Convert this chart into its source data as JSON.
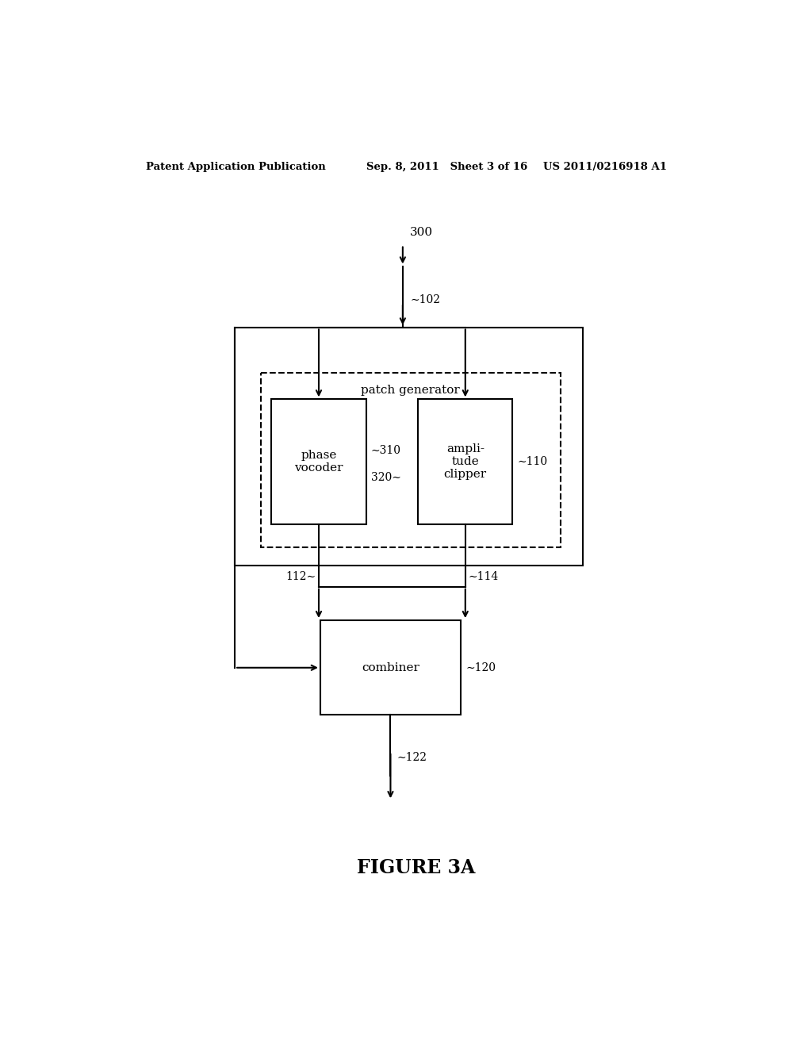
{
  "bg_color": "#ffffff",
  "header_left": "Patent Application Publication",
  "header_mid": "Sep. 8, 2011   Sheet 3 of 16",
  "header_right": "US 2011/0216918 A1",
  "figure_label": "FIGURE 3A",
  "label_300": "300",
  "label_102": "102",
  "label_110": "110",
  "label_310": "310",
  "label_320": "320",
  "label_112": "112",
  "label_114": "114",
  "label_120": "120",
  "label_122": "122",
  "text_patch_generator": "patch generator",
  "text_phase_vocoder": "phase\nvocoder",
  "text_amplitude_clipper": "ampli-\ntude\nclipper",
  "text_combiner": "combiner",
  "tilde": "∼"
}
